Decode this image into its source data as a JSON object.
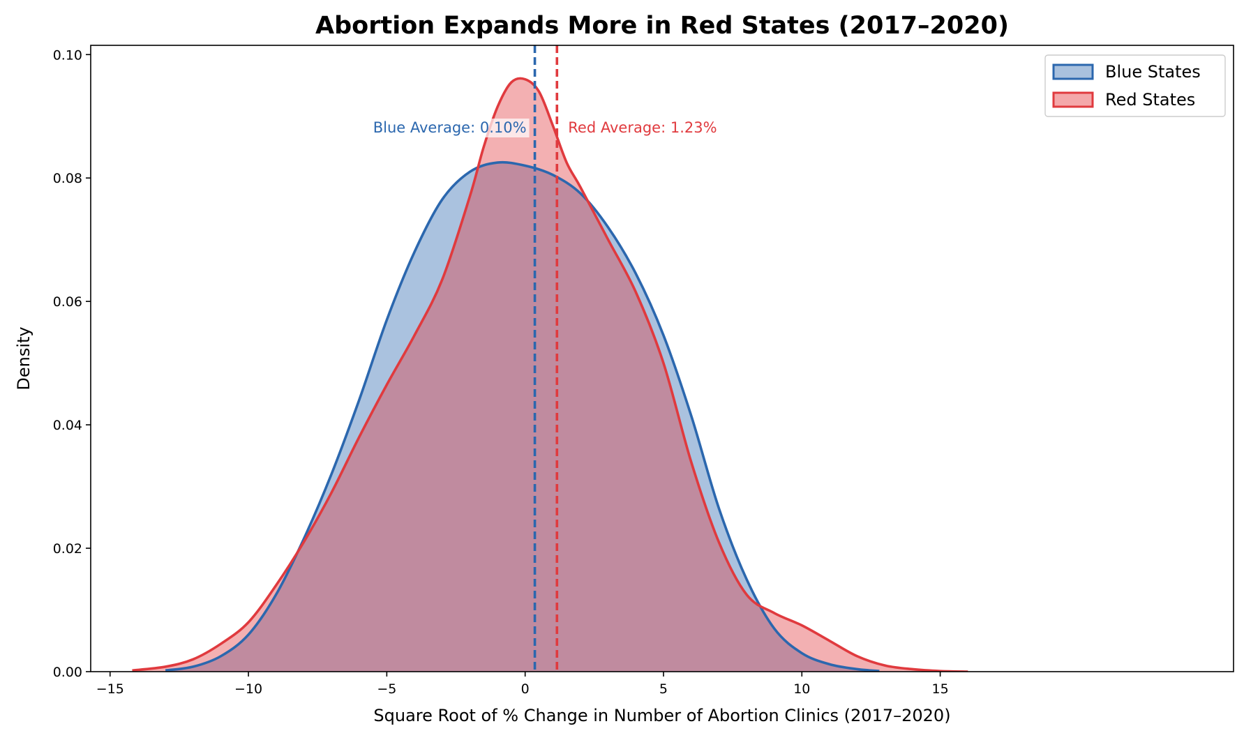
{
  "chart_data": {
    "type": "area",
    "title": "Abortion Expands More in Red States (2017–2020)",
    "xlabel": "Square Root of % Change in Number of Abortion Clinics (2017–2020)",
    "ylabel": "Density",
    "xlim": [
      -15.7,
      25.6
    ],
    "ylim": [
      0,
      0.1015
    ],
    "xticks": [
      -15,
      -10,
      -5,
      0,
      5,
      10,
      15
    ],
    "xtick_labels": [
      "−15",
      "−10",
      "−5",
      "0",
      "5",
      "10",
      "15"
    ],
    "yticks": [
      0,
      0.02,
      0.04,
      0.06,
      0.08,
      0.1
    ],
    "ytick_labels": [
      "0.00",
      "0.02",
      "0.04",
      "0.06",
      "0.08",
      "0.10"
    ],
    "grid": false,
    "legend": "top-right",
    "series": [
      {
        "name": "Blue States",
        "color": "#2b67ae",
        "fill": "#a9c1de",
        "x": [
          -13.0,
          -12,
          -11,
          -10,
          -9,
          -8,
          -7,
          -6,
          -5,
          -4,
          -3,
          -2,
          -1,
          0,
          1,
          2,
          3,
          4,
          5,
          6,
          7,
          8,
          9,
          10,
          11,
          12,
          12.8
        ],
        "y": [
          0.0002,
          0.0008,
          0.0025,
          0.006,
          0.0125,
          0.0215,
          0.032,
          0.044,
          0.057,
          0.068,
          0.0765,
          0.081,
          0.0825,
          0.082,
          0.0805,
          0.0775,
          0.072,
          0.0645,
          0.0545,
          0.0415,
          0.0265,
          0.015,
          0.007,
          0.003,
          0.0012,
          0.0004,
          0.0001
        ]
      },
      {
        "name": "Red States",
        "color": "#e03a3e",
        "fill": "#f4a8aa",
        "x": [
          -14.2,
          -13,
          -12,
          -11,
          -10,
          -9,
          -8,
          -7,
          -6,
          -5,
          -4,
          -3,
          -2,
          -1.5,
          -1,
          -0.5,
          0,
          0.5,
          1,
          1.5,
          2,
          3,
          4,
          5,
          6,
          7,
          8,
          9,
          10,
          11,
          12,
          13,
          14,
          15,
          16
        ],
        "y": [
          0.0002,
          0.0008,
          0.002,
          0.0045,
          0.008,
          0.014,
          0.021,
          0.029,
          0.038,
          0.0465,
          0.0545,
          0.0635,
          0.077,
          0.085,
          0.0915,
          0.0955,
          0.096,
          0.094,
          0.0885,
          0.0825,
          0.0785,
          0.07,
          0.0615,
          0.05,
          0.034,
          0.021,
          0.0125,
          0.0095,
          0.0075,
          0.005,
          0.0025,
          0.001,
          0.0004,
          0.0001,
          0.0
        ]
      }
    ],
    "mean_lines": [
      {
        "series": "Blue States",
        "x": 0.35,
        "label": "Blue Average: 0.10%"
      },
      {
        "series": "Red States",
        "x": 1.15,
        "label": "Red Average: 1.23%"
      }
    ]
  }
}
